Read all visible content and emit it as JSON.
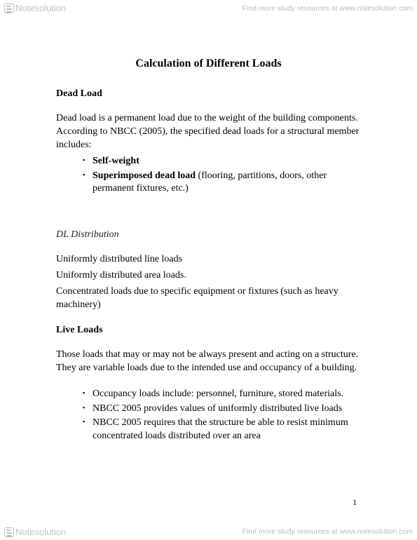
{
  "watermark": {
    "brand": "Notesolution",
    "link_text": "Find more study resources at www.notesolution.com"
  },
  "title": "Calculation of Different Loads",
  "sections": {
    "dead_load": {
      "heading": "Dead Load",
      "intro": "Dead load is a permanent load due to the weight of the building components. According to NBCC (2005), the specified dead loads for a structural member includes:",
      "bullets": {
        "b1_bold": "Self-weight",
        "b2_bold": "Superimposed dead load",
        "b2_rest": " (flooring, partitions, doors, other permanent fixtures, etc.)"
      }
    },
    "dl_dist": {
      "heading": "DL Distribution",
      "lines": {
        "l1": "Uniformly distributed line loads",
        "l2": "Uniformly distributed area loads.",
        "l3": "Concentrated loads due to specific equipment or fixtures (such as heavy machinery)"
      }
    },
    "live_loads": {
      "heading": "Live Loads",
      "intro": "Those loads that may or may not be always present and acting on a structure. They are variable loads due to the intended use and occupancy of a building.",
      "bullets": {
        "b1": "Occupancy loads include: personnel, furniture, stored materials.",
        "b2": "NBCC 2005 provides values of uniformly distributed live loads",
        "b3": "NBCC 2005 requires that the structure be able to resist minimum concentrated loads distributed over an area"
      }
    }
  },
  "page_number": "1",
  "style": {
    "page_bg": "#ffffff",
    "text_color": "#000000",
    "watermark_color": "rgba(0,0,0,0.25)",
    "font_family_body": "Georgia, Times New Roman, serif",
    "font_family_watermark": "Arial, Helvetica, sans-serif",
    "title_fontsize_pt": 12,
    "body_fontsize_pt": 10.5,
    "watermark_fontsize_pt": 8,
    "bullet_glyph": "▪"
  }
}
